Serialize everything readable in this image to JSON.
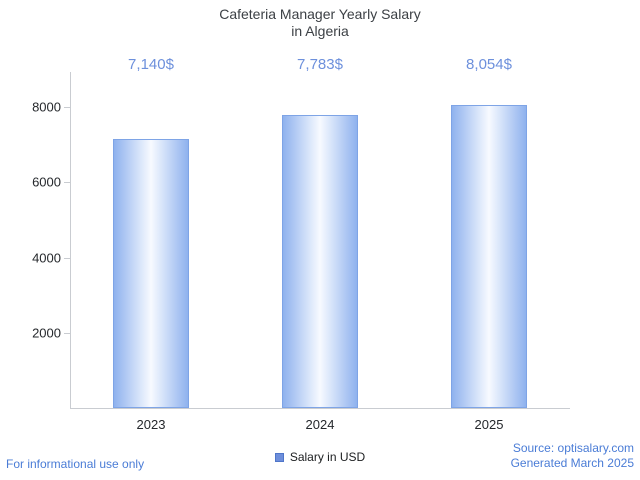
{
  "title": {
    "line1": "Cafeteria Manager Yearly Salary",
    "line2": "in Algeria"
  },
  "chart_data": {
    "type": "bar",
    "title": "Cafeteria Manager Yearly Salary in Algeria",
    "categories": [
      "2023",
      "2024",
      "2025"
    ],
    "values": [
      7140,
      7783,
      8054
    ],
    "value_labels": [
      "7,140$",
      "7,783$",
      "8,054$"
    ],
    "xlabel": "",
    "ylabel": "",
    "ylim": [
      0,
      8900
    ],
    "yticks": [
      2000,
      4000,
      6000,
      8000
    ],
    "grid": false,
    "legend_position": "bottom-center",
    "legend": [
      {
        "label": "Salary in USD",
        "color": "#6d8edb"
      }
    ],
    "bar_gradient": {
      "edge": "#8fb2ee",
      "center": "#f7faff"
    }
  },
  "footer": {
    "left": "For informational use only",
    "source": "Source: optisalary.com",
    "generated": "Generated March 2025"
  },
  "colors": {
    "value_label": "#6d90dc",
    "footer_link": "#4a7cd6",
    "axis": "#c9ccd1",
    "title_text": "#3c4045"
  }
}
